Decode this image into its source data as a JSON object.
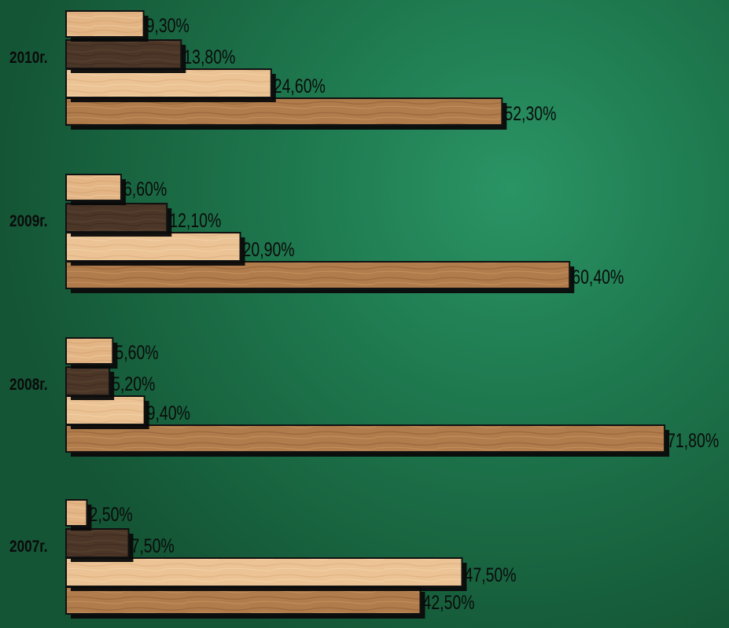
{
  "chart_data": {
    "type": "bar",
    "orientation": "horizontal",
    "categories": [
      "2010г.",
      "2009г.",
      "2008г.",
      "2007г."
    ],
    "series": [
      {
        "values": [
          9.3,
          6.6,
          5.6,
          2.5
        ],
        "labels": [
          "9,30%",
          "6,60%",
          "5,60%",
          "2,50%"
        ],
        "color": "#d4a373"
      },
      {
        "values": [
          13.8,
          12.1,
          5.2,
          7.5
        ],
        "labels": [
          "13,80%",
          "12,10%",
          "5,20%",
          "7,50%"
        ],
        "color": "#4a3626"
      },
      {
        "values": [
          24.6,
          20.9,
          9.4,
          47.5
        ],
        "labels": [
          "24,60%",
          "20,90%",
          "9,40%",
          "47,50%"
        ],
        "color": "#e8bb8a"
      },
      {
        "values": [
          52.3,
          60.4,
          71.8,
          42.5
        ],
        "labels": [
          "52,30%",
          "60,40%",
          "71,80%",
          "42,50%"
        ],
        "color": "#b07a4a"
      }
    ],
    "xlim": [
      0,
      80
    ],
    "grid": false,
    "legend": "none"
  }
}
